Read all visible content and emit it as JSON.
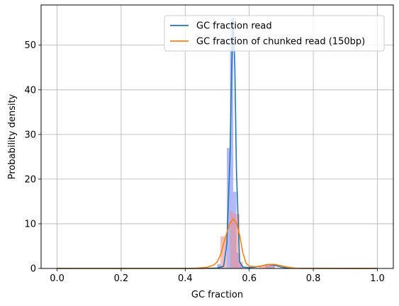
{
  "chart_data": {
    "type": "line",
    "title": "",
    "xlabel": "GC fraction",
    "ylabel": "Probability density",
    "xlim": [
      -0.05,
      1.05
    ],
    "ylim": [
      0,
      59
    ],
    "xticks": [
      0.0,
      0.2,
      0.4,
      0.6,
      0.8,
      1.0
    ],
    "xtick_labels": [
      "0.0",
      "0.2",
      "0.4",
      "0.6",
      "0.8",
      "1.0"
    ],
    "yticks": [
      0,
      10,
      20,
      30,
      40,
      50
    ],
    "ytick_labels": [
      "0",
      "10",
      "20",
      "30",
      "40",
      "50"
    ],
    "grid": true,
    "legend_position": "top-right",
    "histograms": [
      {
        "color": "#6d7ff7",
        "bins": [
          {
            "x0": 0.5,
            "x1": 0.51,
            "value": 1.0
          },
          {
            "x0": 0.51,
            "x1": 0.52,
            "value": 0.6
          },
          {
            "x0": 0.53,
            "x1": 0.54,
            "value": 27.0
          },
          {
            "x0": 0.54,
            "x1": 0.55,
            "value": 56.0
          },
          {
            "x0": 0.55,
            "x1": 0.56,
            "value": 17.2
          },
          {
            "x0": 0.56,
            "x1": 0.57,
            "value": 3.5
          },
          {
            "x0": 0.57,
            "x1": 0.58,
            "value": 0.8
          },
          {
            "x0": 0.65,
            "x1": 0.66,
            "value": 0.7
          },
          {
            "x0": 0.66,
            "x1": 0.67,
            "value": 0.8
          },
          {
            "x0": 0.67,
            "x1": 0.68,
            "value": 0.7
          }
        ]
      },
      {
        "color": "#f28b82",
        "bins": [
          {
            "x0": 0.5,
            "x1": 0.51,
            "value": 0.6
          },
          {
            "x0": 0.51,
            "x1": 0.52,
            "value": 7.2
          },
          {
            "x0": 0.52,
            "x1": 0.53,
            "value": 7.2
          },
          {
            "x0": 0.54,
            "x1": 0.55,
            "value": 12.8
          },
          {
            "x0": 0.55,
            "x1": 0.56,
            "value": 12.2
          },
          {
            "x0": 0.56,
            "x1": 0.57,
            "value": 12.2
          },
          {
            "x0": 0.57,
            "x1": 0.58,
            "value": 1.5
          },
          {
            "x0": 0.63,
            "x1": 0.64,
            "value": 0.6
          },
          {
            "x0": 0.64,
            "x1": 0.65,
            "value": 0.7
          },
          {
            "x0": 0.65,
            "x1": 0.66,
            "value": 0.8
          },
          {
            "x0": 0.66,
            "x1": 0.67,
            "value": 0.8
          },
          {
            "x0": 0.67,
            "x1": 0.68,
            "value": 0.7
          }
        ]
      }
    ],
    "series": [
      {
        "name": "GC fraction read",
        "color": "#1f77b4",
        "x": [
          0.0,
          0.45,
          0.5,
          0.51,
          0.52,
          0.53,
          0.54,
          0.545,
          0.55,
          0.555,
          0.56,
          0.57,
          0.58,
          0.6,
          0.62,
          0.64,
          0.66,
          0.68,
          0.7,
          0.72,
          1.0
        ],
        "y": [
          0,
          0,
          0.1,
          0.3,
          0.5,
          5.5,
          25.0,
          45.0,
          56.0,
          45.0,
          22.0,
          1.5,
          0.3,
          0.2,
          0.3,
          0.6,
          0.9,
          0.7,
          0.3,
          0.05,
          0
        ]
      },
      {
        "name": "GC fraction of chunked read (150bp)",
        "color": "#ff7f0e",
        "x": [
          0.0,
          0.4,
          0.44,
          0.47,
          0.49,
          0.5,
          0.51,
          0.52,
          0.53,
          0.54,
          0.55,
          0.56,
          0.57,
          0.58,
          0.59,
          0.6,
          0.62,
          0.64,
          0.66,
          0.68,
          0.7,
          0.72,
          0.74,
          0.76,
          1.0
        ],
        "y": [
          0,
          0,
          0.1,
          0.3,
          0.8,
          1.5,
          3.0,
          5.5,
          8.0,
          10.2,
          11.0,
          10.2,
          7.5,
          3.5,
          1.2,
          0.5,
          0.4,
          0.6,
          0.9,
          0.9,
          0.6,
          0.3,
          0.1,
          0.02,
          0
        ]
      }
    ]
  }
}
